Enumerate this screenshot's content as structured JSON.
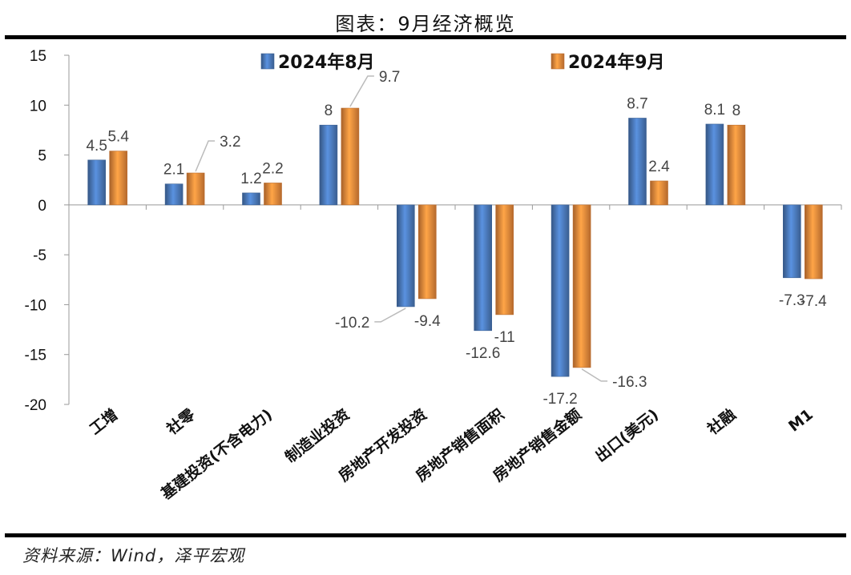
{
  "header": {
    "title": "图表：9月经济概览"
  },
  "footer": {
    "source": "资料来源：Wind，泽平宏观"
  },
  "colors": {
    "series_aug": "#4a78b8",
    "series_sep": "#e8873a"
  },
  "chart_data": {
    "type": "bar",
    "title": "图表：9月经济概览",
    "xlabel": "",
    "ylabel": "",
    "ylim": [
      -20,
      15
    ],
    "yticks": [
      15,
      10,
      5,
      0,
      -5,
      -10,
      -15,
      -20
    ],
    "grid": false,
    "legend_position": "top",
    "categories": [
      "工增",
      "社零",
      "基建投资(不含电力)",
      "制造业投资",
      "房地产开发投资",
      "房地产销售面积",
      "房地产销售金额",
      "出口(美元)",
      "社融",
      "M1"
    ],
    "series": [
      {
        "name": "2024年8月",
        "values": [
          4.5,
          2.1,
          1.2,
          8,
          -10.2,
          -12.6,
          -17.2,
          8.7,
          8.1,
          -7.3
        ]
      },
      {
        "name": "2024年9月",
        "values": [
          5.4,
          3.2,
          2.2,
          9.7,
          -9.4,
          -11,
          -16.3,
          2.4,
          8,
          -7.4
        ]
      }
    ]
  }
}
